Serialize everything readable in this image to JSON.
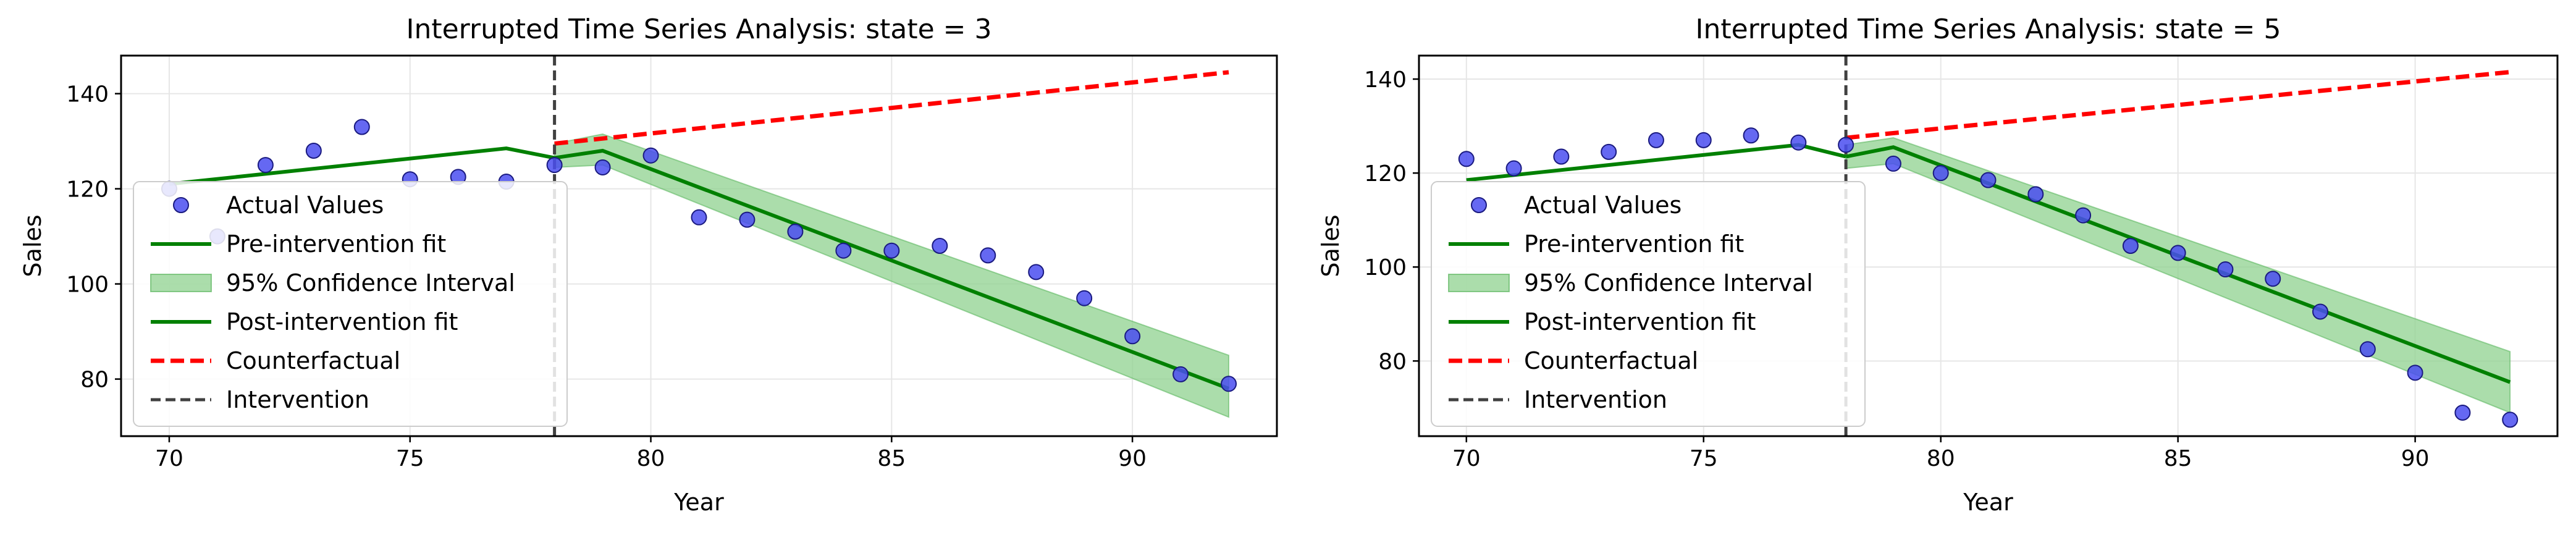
{
  "chart_data": [
    {
      "type": "line",
      "title": "Interrupted Time Series Analysis: state = 3",
      "xlabel": "Year",
      "ylabel": "Sales",
      "xlim": [
        69,
        93
      ],
      "ylim": [
        68,
        148
      ],
      "xticks": [
        70,
        75,
        80,
        85,
        90
      ],
      "yticks": [
        80,
        100,
        120,
        140
      ],
      "grid": true,
      "legend_position": "left",
      "legend": [
        "Actual Values",
        "Pre-intervention fit",
        "95% Confidence Interval",
        "Post-intervention fit",
        "Counterfactual",
        "Intervention"
      ],
      "intervention_x": 78,
      "actual": {
        "x": [
          70,
          71,
          72,
          73,
          74,
          75,
          76,
          77,
          78,
          79,
          80,
          81,
          82,
          83,
          84,
          85,
          86,
          87,
          88,
          89,
          90,
          91,
          92
        ],
        "y": [
          120,
          110,
          125,
          128,
          133,
          122,
          122.5,
          121.5,
          125,
          124.5,
          127,
          114,
          113.5,
          111,
          107,
          107,
          108,
          106,
          102.5,
          97,
          89,
          81,
          79
        ]
      },
      "pre_fit": {
        "x": [
          70,
          77,
          78
        ],
        "y": [
          121,
          128.5,
          126.5
        ]
      },
      "post_fit": {
        "x": [
          78,
          79,
          92
        ],
        "y": [
          126.5,
          128,
          78
        ]
      },
      "ci": {
        "x": [
          78,
          79,
          92
        ],
        "lower": [
          124.5,
          125,
          72
        ],
        "upper": [
          129.5,
          131.5,
          85
        ]
      },
      "counterfactual": {
        "x": [
          78,
          92
        ],
        "y": [
          129.5,
          144.5
        ]
      }
    },
    {
      "type": "line",
      "title": "Interrupted Time Series Analysis: state = 5",
      "xlabel": "Year",
      "ylabel": "Sales",
      "xlim": [
        69,
        93
      ],
      "ylim": [
        64,
        145
      ],
      "xticks": [
        70,
        75,
        80,
        85,
        90
      ],
      "yticks": [
        80,
        100,
        120,
        140
      ],
      "grid": true,
      "legend_position": "left",
      "legend": [
        "Actual Values",
        "Pre-intervention fit",
        "95% Confidence Interval",
        "Post-intervention fit",
        "Counterfactual",
        "Intervention"
      ],
      "intervention_x": 78,
      "actual": {
        "x": [
          70,
          71,
          72,
          73,
          74,
          75,
          76,
          77,
          78,
          79,
          80,
          81,
          82,
          83,
          84,
          85,
          86,
          87,
          88,
          89,
          90,
          91,
          92
        ],
        "y": [
          123,
          121,
          123.5,
          124.5,
          127,
          127,
          128,
          126.5,
          126,
          122,
          120,
          118.5,
          115.5,
          111,
          104.5,
          103,
          99.5,
          97.5,
          90.5,
          82.5,
          77.5,
          69,
          67.5
        ]
      },
      "pre_fit": {
        "x": [
          70,
          77,
          78
        ],
        "y": [
          118.5,
          126,
          123.5
        ]
      },
      "post_fit": {
        "x": [
          78,
          79,
          92
        ],
        "y": [
          123.5,
          125.5,
          75.5
        ]
      },
      "ci": {
        "x": [
          78,
          79,
          92
        ],
        "lower": [
          121,
          122,
          69
        ],
        "upper": [
          126,
          127.5,
          82
        ]
      },
      "counterfactual": {
        "x": [
          78,
          92
        ],
        "y": [
          127.5,
          141.5
        ]
      }
    }
  ],
  "colors": {
    "actual_fill": "#4a4ef0",
    "actual_edge": "#1a1a80",
    "fit": "#008000",
    "ci_fill": "#8fd18f",
    "counterfactual": "#ff0000",
    "intervention": "#404040",
    "grid": "#e6e6e6"
  }
}
